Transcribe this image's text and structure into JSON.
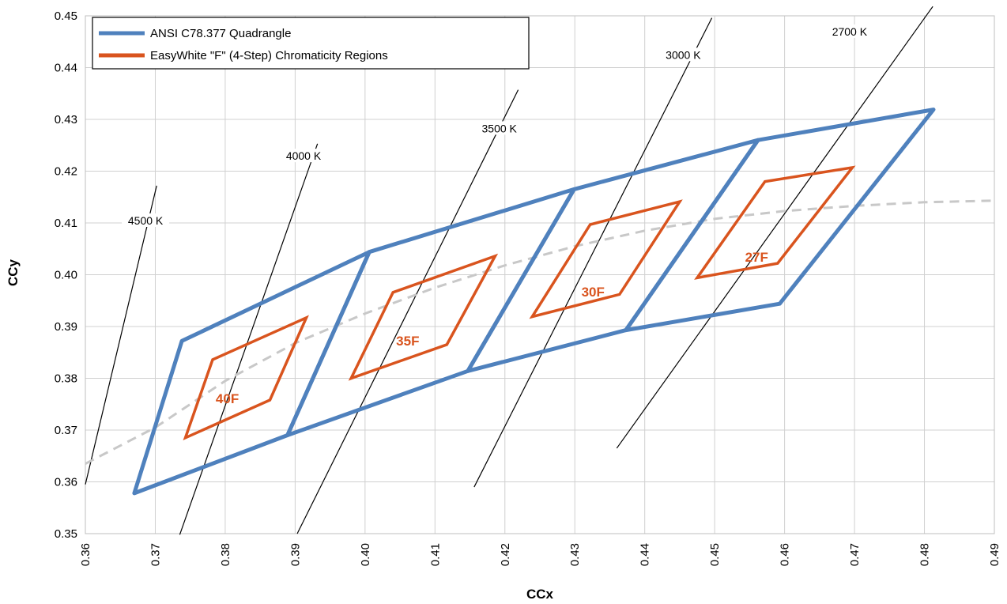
{
  "chart_data": {
    "type": "line",
    "xlabel": "CCx",
    "ylabel": "CCy",
    "xlim": [
      0.36,
      0.49
    ],
    "ylim": [
      0.35,
      0.45
    ],
    "x_ticks": [
      "0.36",
      "0.37",
      "0.38",
      "0.39",
      "0.40",
      "0.41",
      "0.42",
      "0.43",
      "0.44",
      "0.45",
      "0.46",
      "0.47",
      "0.48",
      "0.49"
    ],
    "y_ticks": [
      "0.35",
      "0.36",
      "0.37",
      "0.38",
      "0.39",
      "0.40",
      "0.41",
      "0.42",
      "0.43",
      "0.44",
      "0.45"
    ],
    "grid": true,
    "legend_position": "top-left",
    "legend": [
      {
        "label": "ANSI C78.377 Quadrangle",
        "color": "#4f81bd"
      },
      {
        "label": "EasyWhite \"F\" (4-Step) Chromaticity Regions",
        "color": "#d9541e"
      }
    ],
    "quadrangles": [
      {
        "points": [
          [
            0.367,
            0.3578
          ],
          [
            0.3738,
            0.3872
          ],
          [
            0.4006,
            0.4044
          ],
          [
            0.3889,
            0.369
          ]
        ]
      },
      {
        "points": [
          [
            0.3889,
            0.369
          ],
          [
            0.4006,
            0.4044
          ],
          [
            0.4299,
            0.4165
          ],
          [
            0.4147,
            0.3814
          ]
        ]
      },
      {
        "points": [
          [
            0.4147,
            0.3814
          ],
          [
            0.4299,
            0.4165
          ],
          [
            0.4562,
            0.426
          ],
          [
            0.4373,
            0.3893
          ]
        ]
      },
      {
        "points": [
          [
            0.4373,
            0.3893
          ],
          [
            0.4562,
            0.426
          ],
          [
            0.4813,
            0.4319
          ],
          [
            0.4593,
            0.3944
          ]
        ]
      }
    ],
    "regions": [
      {
        "label": "40F",
        "label_at": [
          0.3803,
          0.3752
        ],
        "points": [
          [
            0.3743,
            0.3685
          ],
          [
            0.3782,
            0.3836
          ],
          [
            0.3916,
            0.3917
          ],
          [
            0.3864,
            0.3758
          ]
        ]
      },
      {
        "label": "35F",
        "label_at": [
          0.4061,
          0.3863
        ],
        "points": [
          [
            0.398,
            0.38
          ],
          [
            0.404,
            0.3966
          ],
          [
            0.4186,
            0.4036
          ],
          [
            0.4117,
            0.3865
          ]
        ]
      },
      {
        "label": "30F",
        "label_at": [
          0.4326,
          0.3958
        ],
        "points": [
          [
            0.4239,
            0.3919
          ],
          [
            0.4322,
            0.4097
          ],
          [
            0.445,
            0.4141
          ],
          [
            0.4364,
            0.3962
          ]
        ]
      },
      {
        "label": "27F",
        "label_at": [
          0.456,
          0.4025
        ],
        "points": [
          [
            0.4475,
            0.3994
          ],
          [
            0.4572,
            0.418
          ],
          [
            0.4697,
            0.4207
          ],
          [
            0.459,
            0.4022
          ]
        ]
      }
    ],
    "planckian": [
      [
        0.36,
        0.3635
      ],
      [
        0.37,
        0.3705
      ],
      [
        0.38,
        0.3795
      ],
      [
        0.39,
        0.3868
      ],
      [
        0.4,
        0.3925
      ],
      [
        0.41,
        0.3975
      ],
      [
        0.42,
        0.4018
      ],
      [
        0.43,
        0.4055
      ],
      [
        0.44,
        0.4085
      ],
      [
        0.45,
        0.4108
      ],
      [
        0.46,
        0.4123
      ],
      [
        0.47,
        0.4133
      ],
      [
        0.48,
        0.414
      ],
      [
        0.49,
        0.4143
      ]
    ],
    "isotherms": [
      {
        "label": "4500 K",
        "label_at": [
          0.3686,
          0.41
        ],
        "points": [
          [
            0.36,
            0.3595
          ],
          [
            0.3702,
            0.4172
          ]
        ]
      },
      {
        "label": "4000 K",
        "label_at": [
          0.3912,
          0.4225
        ],
        "points": [
          [
            0.3735,
            0.3498
          ],
          [
            0.3932,
            0.4253
          ]
        ]
      },
      {
        "label": "3500 K",
        "label_at": [
          0.4192,
          0.4278
        ],
        "points": [
          [
            0.3903,
            0.35
          ],
          [
            0.4219,
            0.4357
          ]
        ]
      },
      {
        "label": "3000 K",
        "label_at": [
          0.4455,
          0.442
        ],
        "points": [
          [
            0.4156,
            0.359
          ],
          [
            0.4496,
            0.4496
          ]
        ]
      },
      {
        "label": "2700 K",
        "label_at": [
          0.4693,
          0.4465
        ],
        "points": [
          [
            0.436,
            0.3665
          ],
          [
            0.4812,
            0.4518
          ]
        ]
      }
    ]
  }
}
